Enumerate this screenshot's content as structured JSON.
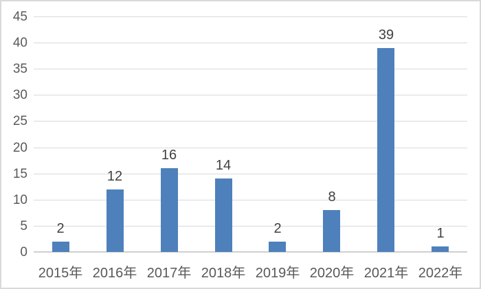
{
  "chart_data": {
    "type": "bar",
    "categories": [
      "2015年",
      "2016年",
      "2017年",
      "2018年",
      "2019年",
      "2020年",
      "2021年",
      "2022年"
    ],
    "values": [
      2,
      12,
      16,
      14,
      2,
      8,
      39,
      1
    ],
    "title": "",
    "xlabel": "",
    "ylabel": "",
    "ylim": [
      0,
      45
    ],
    "yticks": [
      0,
      5,
      10,
      15,
      20,
      25,
      30,
      35,
      40,
      45
    ],
    "grid": true,
    "legend": false,
    "data_labels_shown": true,
    "colors": {
      "bar": "#4e80bc",
      "gridline": "#d9d9d9",
      "axis_line": "#cfcfcf",
      "y_tick_label": "#595959",
      "x_tick_label": "#595959",
      "data_label": "#404040",
      "chart_border": "#d9d9d9",
      "background": "#ffffff"
    }
  }
}
